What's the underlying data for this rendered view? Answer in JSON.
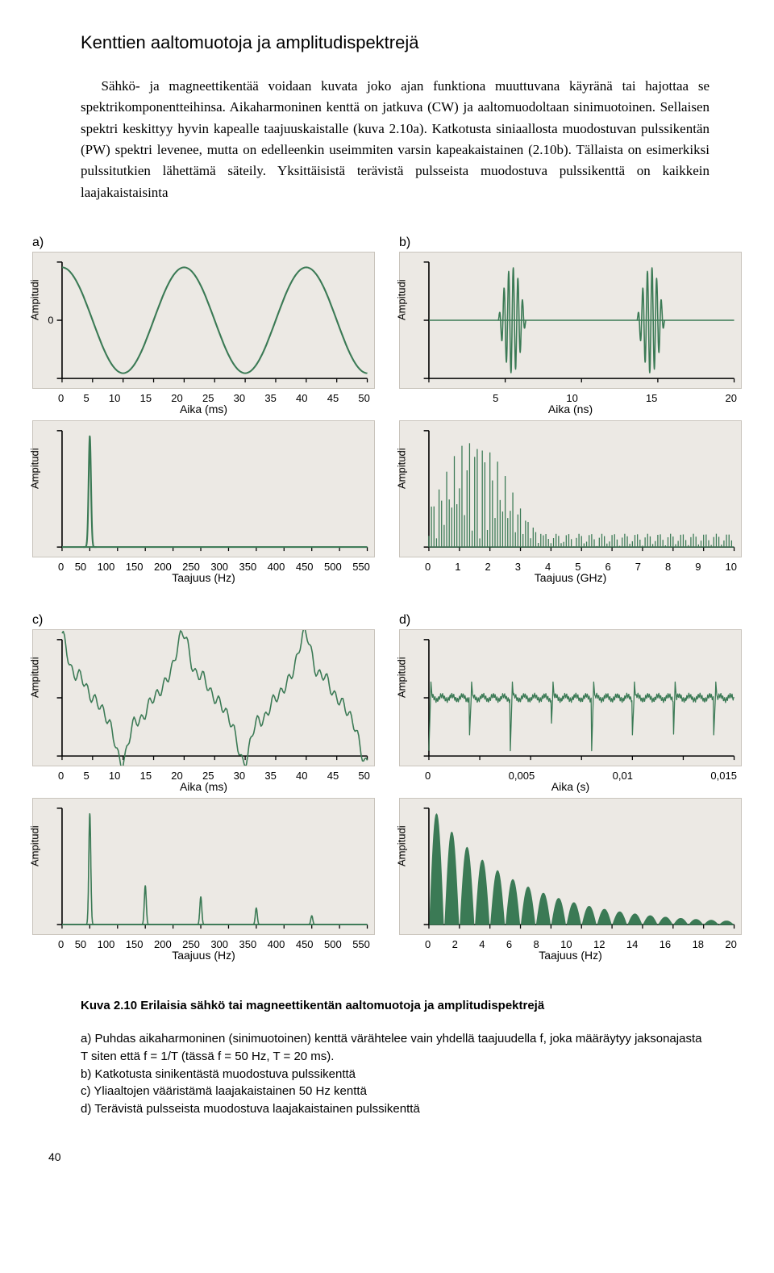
{
  "title": "Kenttien aaltomuotoja ja amplitudispektrejä",
  "intro": "Sähkö- ja magneettikentää voidaan kuvata joko ajan funktiona muuttuvana käyränä tai hajottaa se spektrikomponentteihinsa. Aikaharmoninen kenttä on jatkuva (CW) ja aaltomuodoltaan sinimuotoinen. Sellaisen spektri keskittyy hyvin kapealle taajuuskaistalle (kuva 2.10a). Katkotusta siniaallosta muodostuvan pulssikentän (PW) spektri levenee, mutta on edelleenkin useimmiten varsin kapeakaistainen (2.10b). Tällaista on esimerkiksi pulssitutkien lähettämä säteily. Yksittäisistä terävistä pulsseista muodostuva pulssikenttä on kaikkein laajakaistaisinta",
  "colors": {
    "panel_bg": "#ece9e4",
    "line": "#3b7a55",
    "line_dark": "#2f6345",
    "axis": "#000000"
  },
  "panels": {
    "a": {
      "label": "a)",
      "top": {
        "ylabel": "Ampitudi",
        "xlabel": "Aika (ms)",
        "xticks": [
          "0",
          "5",
          "10",
          "15",
          "20",
          "25",
          "30",
          "35",
          "40",
          "45",
          "50"
        ],
        "type": "line",
        "stroke_width": 2,
        "xlim": [
          0,
          50
        ],
        "ylim": [
          -1.1,
          1.1
        ],
        "center_tick": "0",
        "series": [
          {
            "shape": "sine",
            "freq": 50,
            "amp": 1,
            "samples": 200
          }
        ]
      },
      "bottom": {
        "ylabel": "Ampitudi",
        "xlabel": "Taajuus (Hz)",
        "xticks": [
          "0",
          "50",
          "100",
          "150",
          "200",
          "250",
          "300",
          "350",
          "400",
          "450",
          "500",
          "550"
        ],
        "type": "spectrum",
        "stroke_width": 2,
        "xlim": [
          0,
          550
        ],
        "ylim": [
          0,
          1.05
        ],
        "series": [
          {
            "shape": "peak",
            "center": 50,
            "width": 6,
            "amp": 1
          }
        ]
      }
    },
    "b": {
      "label": "b)",
      "top": {
        "ylabel": "Ampitudi",
        "xlabel": "Aika (ns)",
        "xticks": [
          "",
          "5",
          "10",
          "15",
          "20"
        ],
        "type": "line",
        "stroke_width": 1.5,
        "xlim": [
          0,
          22
        ],
        "ylim": [
          -1.1,
          1.1
        ],
        "series": [
          {
            "shape": "gated-sine",
            "bursts": [
              [
                5,
                7
              ],
              [
                15,
                17
              ]
            ],
            "freq": 3000,
            "amp": 1
          }
        ]
      },
      "bottom": {
        "ylabel": "Ampitudi",
        "xlabel": "Taajuus (GHz)",
        "xticks": [
          "0",
          "1",
          "2",
          "3",
          "4",
          "5",
          "6",
          "7",
          "8",
          "9",
          "10"
        ],
        "type": "spectrum",
        "stroke_width": 1,
        "xlim": [
          0,
          10
        ],
        "ylim": [
          0,
          1.05
        ],
        "series": [
          {
            "shape": "comb",
            "center": 1.5,
            "spread": 3,
            "amp": 1,
            "noise": 0.12
          }
        ]
      }
    },
    "c": {
      "label": "c)",
      "top": {
        "ylabel": "Ampitudi",
        "xlabel": "Aika (ms)",
        "xticks": [
          "0",
          "5",
          "10",
          "15",
          "20",
          "25",
          "30",
          "35",
          "40",
          "45",
          "50"
        ],
        "type": "line",
        "stroke_width": 1.5,
        "xlim": [
          0,
          50
        ],
        "ylim": [
          -1.3,
          1.3
        ],
        "series": [
          {
            "shape": "distorted-sine",
            "freq": 50,
            "amp": 1,
            "samples": 250
          }
        ]
      },
      "bottom": {
        "ylabel": "Ampitudi",
        "xlabel": "Taajuus (Hz)",
        "xticks": [
          "0",
          "50",
          "100",
          "150",
          "200",
          "250",
          "300",
          "350",
          "400",
          "450",
          "500",
          "550"
        ],
        "type": "spectrum",
        "stroke_width": 1.5,
        "xlim": [
          0,
          550
        ],
        "ylim": [
          0,
          1.05
        ],
        "series": [
          {
            "shape": "peak",
            "center": 50,
            "width": 5,
            "amp": 1
          },
          {
            "shape": "peak",
            "center": 150,
            "width": 5,
            "amp": 0.35
          },
          {
            "shape": "peak",
            "center": 250,
            "width": 5,
            "amp": 0.25
          },
          {
            "shape": "peak",
            "center": 350,
            "width": 5,
            "amp": 0.15
          },
          {
            "shape": "peak",
            "center": 450,
            "width": 5,
            "amp": 0.08
          }
        ]
      }
    },
    "d": {
      "label": "d)",
      "top": {
        "ylabel": "Ampitudi",
        "xlabel": "Aika (s)",
        "xticks": [
          "0",
          "",
          "0,005",
          "",
          "0,01",
          "",
          "0,015"
        ],
        "type": "line",
        "stroke_width": 1.2,
        "xlim": [
          0,
          0.015
        ],
        "ylim": [
          -1.1,
          1.1
        ],
        "series": [
          {
            "shape": "spike-train",
            "period": 0.002,
            "amp": 1,
            "noise": 0.15
          }
        ]
      },
      "bottom": {
        "ylabel": "Ampitudi",
        "xlabel": "Taajuus (Hz)",
        "xticks": [
          "0",
          "2",
          "4",
          "6",
          "8",
          "10",
          "12",
          "14",
          "16",
          "18",
          "20"
        ],
        "type": "spectrum",
        "stroke_width": 1,
        "xlim": [
          0,
          20
        ],
        "ylim": [
          0,
          1.05
        ],
        "series": [
          {
            "shape": "decay-comb",
            "spacing": 1,
            "count": 20,
            "decay": 0.18
          }
        ]
      }
    }
  },
  "caption_strong": "Kuva 2.10 Erilaisia sähkö tai magneettikentän aaltomuotoja ja amplitudispektrejä",
  "notes": [
    "a) Puhdas aikaharmoninen (sinimuotoinen) kenttä värähtelee vain yhdellä taajuudella f, joka määräytyy jaksonajasta T siten että f = 1/T (tässä f = 50 Hz, T = 20 ms).",
    "b) Katkotusta sinikentästä muodostuva pulssikenttä",
    "c) Yliaaltojen vääristämä laajakaistainen 50 Hz kenttä",
    "d) Terävistä pulsseista muodostuva laajakaistainen pulssikenttä"
  ],
  "page": "40"
}
